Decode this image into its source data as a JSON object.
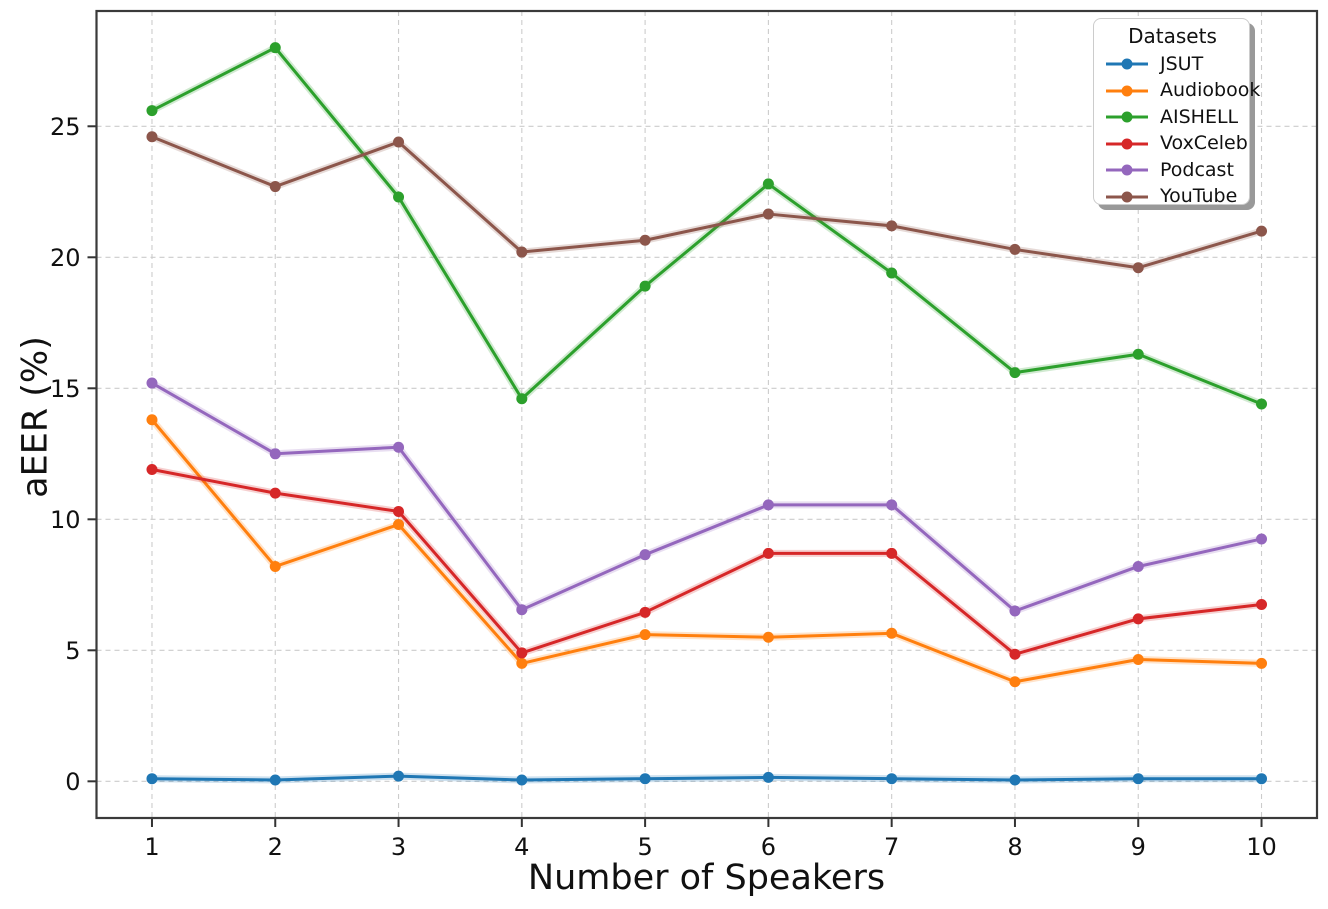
{
  "chart_data": {
    "type": "line",
    "title": "",
    "xlabel": "Number of Speakers",
    "ylabel": "aEER (%)",
    "legend_title": "Datasets",
    "legend_position": "upper right",
    "grid": true,
    "x": [
      1,
      2,
      3,
      4,
      5,
      6,
      7,
      8,
      9,
      10
    ],
    "xticks": [
      1,
      2,
      3,
      4,
      5,
      6,
      7,
      8,
      9,
      10
    ],
    "yticks": [
      0,
      5,
      10,
      15,
      20,
      25
    ],
    "xlim": [
      0.55,
      10.45
    ],
    "ylim": [
      -1.4,
      29.4
    ],
    "series": [
      {
        "name": "JSUT",
        "color": "#1f77b4",
        "values": [
          0.1,
          0.05,
          0.2,
          0.05,
          0.1,
          0.15,
          0.1,
          0.05,
          0.1,
          0.1
        ]
      },
      {
        "name": "Audiobook",
        "color": "#ff7f0e",
        "values": [
          13.8,
          8.2,
          9.8,
          4.5,
          5.6,
          5.5,
          5.65,
          3.8,
          4.65,
          4.5
        ]
      },
      {
        "name": "AISHELL",
        "color": "#2ca02c",
        "values": [
          25.6,
          28.0,
          22.3,
          14.6,
          18.9,
          22.8,
          19.4,
          15.6,
          16.3,
          14.4
        ]
      },
      {
        "name": "VoxCeleb",
        "color": "#d62728",
        "values": [
          11.9,
          11.0,
          10.3,
          4.9,
          6.45,
          8.7,
          8.7,
          4.85,
          6.2,
          6.75
        ]
      },
      {
        "name": "Podcast",
        "color": "#9467bd",
        "values": [
          15.2,
          12.5,
          12.75,
          6.55,
          8.65,
          10.55,
          10.55,
          6.5,
          8.2,
          9.25
        ]
      },
      {
        "name": "YouTube",
        "color": "#8c564b",
        "values": [
          24.6,
          22.7,
          24.4,
          20.2,
          20.65,
          21.65,
          21.2,
          20.3,
          19.6,
          21.0
        ]
      }
    ],
    "style": {
      "grid_color": "#cccccc",
      "spine_color": "#3a3a3a",
      "tick_color": "#333333",
      "text_color": "#111111"
    }
  }
}
